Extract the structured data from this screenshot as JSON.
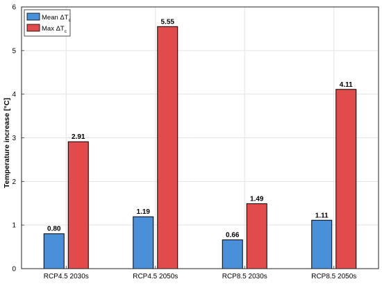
{
  "chart_data": {
    "type": "bar",
    "categories": [
      "RCP4.5 2030s",
      "RCP4.5 2050s",
      "RCP8.5 2030s",
      "RCP8.5 2050s"
    ],
    "series": [
      {
        "name": "Mean ΔTc",
        "name_main": "Mean ΔT",
        "name_sub": "c",
        "color": "#4a90d9",
        "values": [
          0.8,
          1.19,
          0.66,
          1.11
        ],
        "labels": [
          "0.80",
          "1.19",
          "0.66",
          "1.11"
        ]
      },
      {
        "name": "Max ΔTc",
        "name_main": "Max ΔT",
        "name_sub": "c",
        "color": "#e24b4b",
        "values": [
          2.91,
          5.55,
          1.49,
          4.11
        ],
        "labels": [
          "2.91",
          "5.55",
          "1.49",
          "4.11"
        ]
      }
    ],
    "title": "",
    "xlabel": "",
    "ylabel": "Temperature increase [°C]",
    "ylim": [
      0,
      6
    ],
    "yticks": [
      0,
      1,
      2,
      3,
      4,
      5,
      6
    ],
    "ytick_labels": [
      "0",
      "1",
      "2",
      "3",
      "4",
      "5",
      "6"
    ],
    "grid": true,
    "legend_position": "top-left"
  }
}
